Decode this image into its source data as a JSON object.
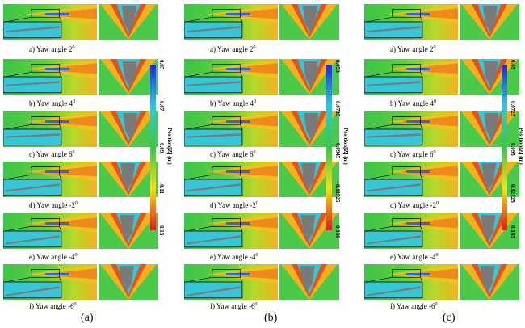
{
  "columns": [
    {
      "label": "(a)",
      "colorbar": {
        "title": "Position[Z] (m)",
        "ticks": [
          "0.05",
          "0.07",
          "0.09",
          "0.11",
          "0.13"
        ]
      }
    },
    {
      "label": "(b)",
      "colorbar": {
        "title": "Position[Z] (m)",
        "ticks": [
          "0.053",
          "0.0735",
          "0.0945",
          "0.11525",
          "0.136"
        ]
      }
    },
    {
      "label": "(c)",
      "colorbar": {
        "title": "Position[Z] (m)",
        "ticks": [
          "0.05",
          "0.0725",
          "0.095",
          "0.12125",
          "0.145"
        ]
      }
    }
  ],
  "panels": [
    {
      "letter": "a)",
      "text": "Yaw angle 2",
      "deg": "0"
    },
    {
      "letter": "b)",
      "text": "Yaw angle 4",
      "deg": "0"
    },
    {
      "letter": "c)",
      "text": "Yaw angle 6",
      "deg": "0"
    },
    {
      "letter": "d)",
      "text": "Yaw angle -2",
      "deg": "0"
    },
    {
      "letter": "e)",
      "text": "Yaw angle -4",
      "deg": "0"
    },
    {
      "letter": "f)",
      "text": "Yaw angle -6",
      "deg": "0"
    }
  ],
  "colors": {
    "green": "#3ec44a",
    "yellow": "#f2e21e",
    "orange": "#f07a1e",
    "red": "#d81a1a",
    "blue": "#2a6ad6",
    "cyan": "#35c7d6",
    "gray": "#7a7a7a"
  }
}
